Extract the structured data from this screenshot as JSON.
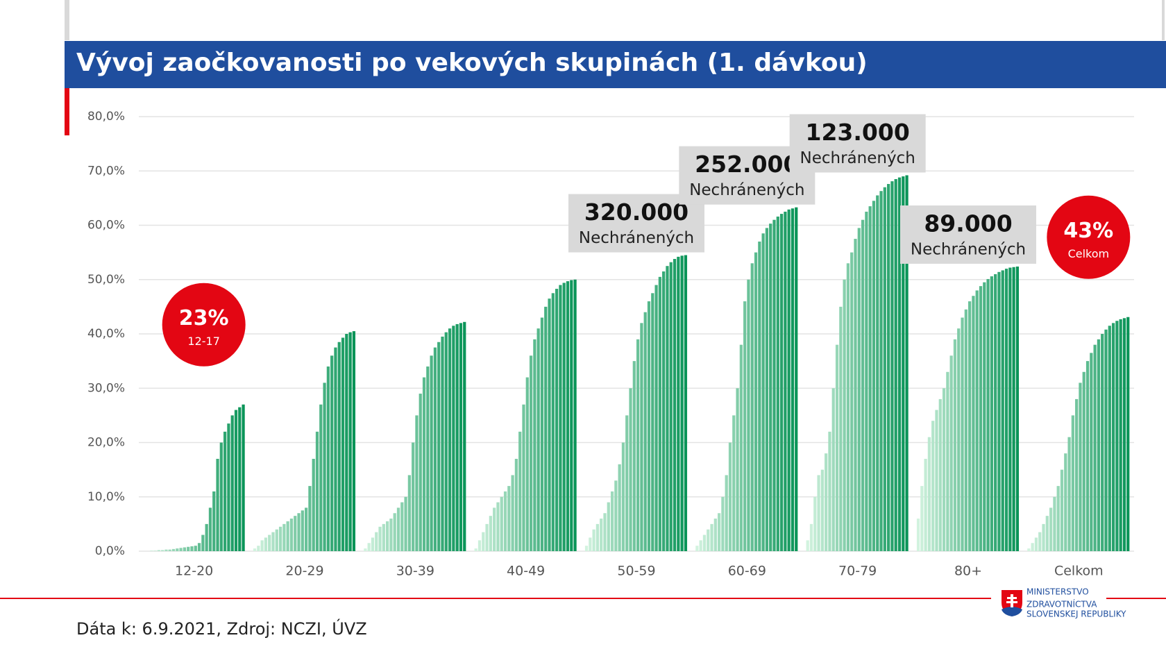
{
  "chart_data": {
    "type": "bar",
    "title": "Vývoj zaočkovanosti po vekových skupinách (1. dávkou)",
    "categories": [
      "12-20",
      "20-29",
      "30-39",
      "40-49",
      "50-59",
      "60-69",
      "70-79",
      "80+",
      "Celkom"
    ],
    "values": [
      [
        0,
        0,
        0.1,
        0.1,
        0.2,
        0.2,
        0.3,
        0.3,
        0.4,
        0.5,
        0.6,
        0.7,
        0.8,
        0.9,
        1,
        1.5,
        3,
        5,
        8,
        11,
        17,
        20,
        22,
        23.5,
        25,
        26,
        26.5,
        27
      ],
      [
        0.5,
        1,
        2,
        2.5,
        3,
        3.5,
        4,
        4.5,
        5,
        5.5,
        6,
        6.5,
        7,
        7.5,
        8,
        12,
        17,
        22,
        27,
        31,
        34,
        36,
        37.5,
        38.5,
        39.3,
        40,
        40.3,
        40.5
      ],
      [
        0.5,
        1.5,
        2.5,
        3.5,
        4.5,
        5,
        5.5,
        6,
        7,
        8,
        9,
        10,
        14,
        20,
        25,
        29,
        32,
        34,
        36,
        37.5,
        38.5,
        39.5,
        40.3,
        41,
        41.5,
        41.8,
        42,
        42.2
      ],
      [
        0.5,
        2,
        3.5,
        5,
        6.5,
        8,
        9,
        10,
        11,
        12,
        14,
        17,
        22,
        27,
        32,
        36,
        39,
        41,
        43,
        45,
        46.5,
        47.5,
        48.3,
        49,
        49.4,
        49.7,
        49.9,
        50
      ],
      [
        1,
        2.5,
        4,
        5,
        6,
        7,
        9,
        11,
        13,
        16,
        20,
        25,
        30,
        35,
        39,
        42,
        44,
        46,
        47.5,
        49,
        50.5,
        51.5,
        52.5,
        53.2,
        53.8,
        54.2,
        54.4,
        54.5
      ],
      [
        1,
        2,
        3,
        4,
        5,
        6,
        7,
        10,
        14,
        20,
        25,
        30,
        38,
        46,
        50,
        53,
        55,
        57,
        58.5,
        59.5,
        60.3,
        61,
        61.6,
        62.1,
        62.5,
        62.9,
        63.1,
        63.3
      ],
      [
        2,
        5,
        10,
        14,
        15,
        18,
        22,
        30,
        38,
        45,
        50,
        53,
        55,
        57.5,
        59.5,
        61,
        62.5,
        63.5,
        64.5,
        65.5,
        66.3,
        67,
        67.6,
        68.1,
        68.5,
        68.8,
        69,
        69.2
      ],
      [
        6,
        12,
        17,
        21,
        24,
        26,
        28,
        30,
        33,
        36,
        39,
        41,
        43,
        44.5,
        46,
        47,
        48,
        48.8,
        49.5,
        50.1,
        50.6,
        51,
        51.4,
        51.7,
        52,
        52.2,
        52.3,
        52.4
      ],
      [
        0.5,
        1.5,
        2.5,
        3.5,
        5,
        6.5,
        8,
        10,
        12,
        15,
        18,
        21,
        25,
        28,
        31,
        33,
        35,
        36.5,
        38,
        39,
        40,
        40.8,
        41.5,
        42,
        42.4,
        42.7,
        42.9,
        43.1
      ]
    ],
    "color_start": "#d2f3df",
    "color_end": "#0a9458",
    "ylim": [
      0,
      80
    ],
    "yticks": [
      {
        "value": 0,
        "label": "0,0%"
      },
      {
        "value": 10,
        "label": "10,0%"
      },
      {
        "value": 20,
        "label": "20,0%"
      },
      {
        "value": 30,
        "label": "30,0%"
      },
      {
        "value": 40,
        "label": "40,0%"
      },
      {
        "value": 50,
        "label": "50,0%"
      },
      {
        "value": 60,
        "label": "60,0%"
      },
      {
        "value": 70,
        "label": "70,0%"
      },
      {
        "value": 80,
        "label": "80,0%"
      }
    ],
    "grid": true,
    "boxes": [
      {
        "category": 4,
        "number": "320.000",
        "text": "Nechránených"
      },
      {
        "category": 5,
        "number": "252.000",
        "text": "Nechránených"
      },
      {
        "category": 6,
        "number": "123.000",
        "text": "Nechránených"
      },
      {
        "category": 7,
        "number": "89.000",
        "text": "Nechránených"
      }
    ],
    "circles": [
      {
        "category": 0,
        "text": "23%",
        "label": "12-17"
      },
      {
        "category": 8,
        "text": "43%",
        "label": "Celkom"
      }
    ]
  },
  "footer": "Dáta k: 6.9.2021, Zdroj: NCZI, ÚVZ",
  "logo": [
    "MINISTERSTVO",
    "ZDRAVOTNÍCTVA",
    "SLOVENSKEJ REPUBLIKY"
  ]
}
